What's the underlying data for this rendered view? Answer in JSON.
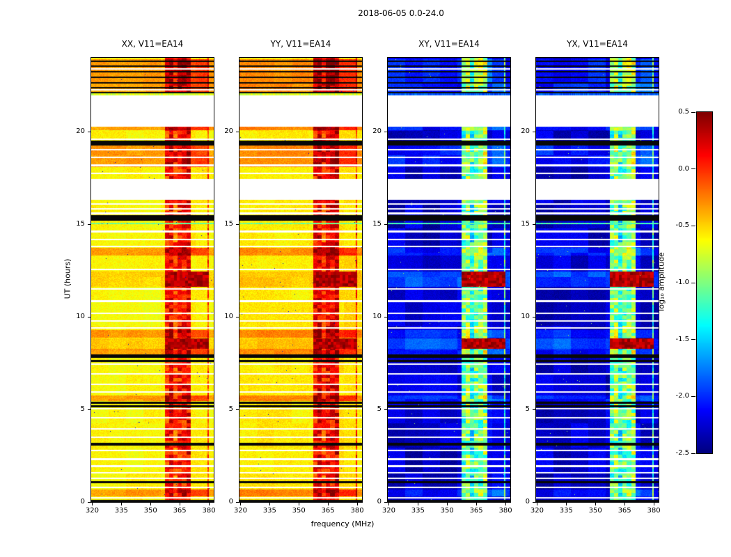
{
  "figure": {
    "title": "2018-06-05 0.0-24.0"
  },
  "chart_data": {
    "type": "heatmap",
    "title": "2018-06-05 0.0-24.0",
    "xlabel": "frequency (MHz)",
    "ylabel": "UT (hours)",
    "x_range": [
      319.5,
      382.5
    ],
    "y_range": [
      0,
      24
    ],
    "x_ticks": [
      320,
      335,
      350,
      365,
      380
    ],
    "y_ticks": [
      0,
      5,
      10,
      15,
      20
    ],
    "colorbar": {
      "label": "log₁₀ amplitude",
      "colormap": "jet",
      "range": [
        -2.5,
        0.5
      ],
      "ticks": [
        0.5,
        0.0,
        -0.5,
        -1.0,
        -1.5,
        -2.0,
        -2.5
      ]
    },
    "panels": [
      {
        "title": "XX, V11=EA14",
        "pol": "xx",
        "base": -0.62,
        "noise": 0.1,
        "blob": 0.05,
        "band_base": -0.38,
        "band_var": 0.55,
        "bright_boost": 0.28,
        "block_boost": 0.12,
        "green_val": -1.05,
        "blue_val": -0.75,
        "speck": -2.3
      },
      {
        "title": "YY, V11=EA14",
        "pol": "yy",
        "base": -0.58,
        "noise": 0.1,
        "blob": 0.05,
        "band_base": -0.32,
        "band_var": 0.55,
        "bright_boost": 0.3,
        "block_boost": 0.12,
        "green_val": -1.05,
        "blue_val": -0.75,
        "speck": -2.3
      },
      {
        "title": "XY, V11=EA14",
        "pol": "xy",
        "base": -2.28,
        "noise": 0.08,
        "blob": 0.16,
        "band_base": -1.7,
        "band_var": 0.8,
        "bright_boost": 0.2,
        "block_boost": 0.35,
        "green_val": -1.15,
        "blue_val": -1.85,
        "speck": -0.9
      },
      {
        "title": "YX, V11=EA14",
        "pol": "yx",
        "base": -2.28,
        "noise": 0.08,
        "blob": 0.16,
        "band_base": -1.7,
        "band_var": 0.8,
        "bright_boost": 0.2,
        "block_boost": 0.35,
        "green_val": -1.15,
        "blue_val": -1.85,
        "speck": -0.9
      }
    ],
    "features": {
      "band": {
        "f0": 357.5,
        "f1": 380.0,
        "channel_width_mhz": 2.2
      },
      "red_blocks": [
        [
          11.62,
          12.45
        ],
        [
          8.28,
          8.85
        ]
      ],
      "bright_rows": [
        [
          22.18,
          23.95
        ],
        [
          21.97,
          22.2
        ],
        [
          20.1,
          20.32
        ],
        [
          18.1,
          19.28
        ],
        [
          13.3,
          13.75
        ],
        [
          8.86,
          9.3
        ],
        [
          7.95,
          8.28
        ],
        [
          5.45,
          5.75
        ],
        [
          0.3,
          0.65
        ]
      ],
      "green_lines": [
        15.05
      ],
      "blue_row": 22.05
    },
    "flags": {
      "white_gaps": [
        [
          20.3,
          21.97
        ],
        [
          16.35,
          17.45
        ]
      ],
      "white_lines": [
        23.42,
        22.28,
        19.62,
        19.05,
        18.62,
        18.2,
        17.75,
        16.12,
        15.85,
        15.6,
        14.62,
        14.2,
        13.82,
        12.55,
        11.52,
        10.85,
        10.2,
        9.78,
        9.4,
        7.45,
        6.92,
        6.35,
        5.92,
        5.02,
        4.55,
        3.95,
        3.5,
        2.78,
        2.3,
        1.92,
        1.55,
        1.25,
        0.78,
        0.2
      ],
      "black_rows": [
        [
          23.78,
          23.88
        ],
        [
          23.52,
          23.6
        ],
        [
          23.22,
          23.3
        ],
        [
          22.92,
          23.0
        ],
        [
          22.62,
          22.7
        ],
        [
          22.35,
          22.43
        ],
        [
          22.1,
          22.18
        ],
        [
          19.28,
          19.52
        ],
        [
          15.22,
          15.5
        ],
        [
          7.78,
          7.95
        ],
        [
          7.55,
          7.68
        ],
        [
          5.28,
          5.42
        ],
        [
          5.1,
          5.2
        ],
        [
          3.05,
          3.18
        ],
        [
          1.0,
          1.12
        ],
        [
          0.0,
          0.08
        ]
      ]
    }
  }
}
